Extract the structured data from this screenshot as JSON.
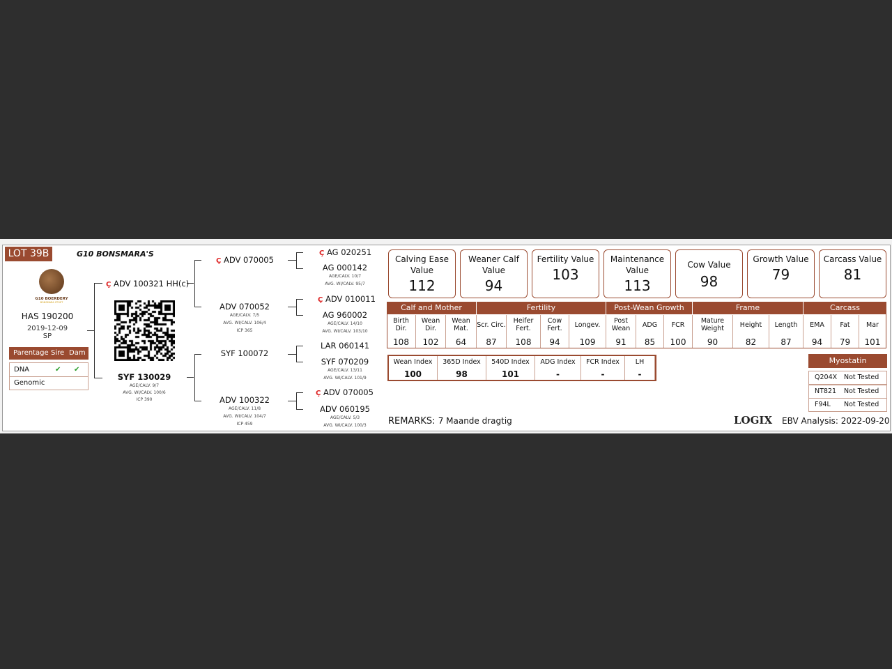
{
  "lot": "LOT 39B",
  "breeder": "G10 BONSMARA'S",
  "logo": {
    "text": "G10 BOERDERY",
    "sub": "BONSMARA STOET"
  },
  "animal": {
    "id": "HAS 190200",
    "dob": "2019-12-09",
    "code": "SP"
  },
  "parentage": {
    "headers": [
      "Parentage",
      "Sire",
      "Dam"
    ],
    "rows": [
      {
        "label": "DNA",
        "sire": "✔",
        "dam": "✔"
      },
      {
        "label": "Genomic",
        "sire": "",
        "dam": ""
      }
    ]
  },
  "pedigree": {
    "sire": {
      "id": "ADV 100321 HH(c)",
      "ct": true
    },
    "dam": {
      "id": "SYF 130029",
      "l1": "AGE/CALV. 9/7",
      "l2": "AVG. WI/CALV. 100/6",
      "l3": "ICP 390"
    },
    "ss": {
      "id": "ADV 070005",
      "ct": true
    },
    "sd": {
      "id": "ADV 070052",
      "l1": "AGE/CALV. 7/5",
      "l2": "AVG. WI/CALV. 106/4",
      "l3": "ICP 365"
    },
    "ds": {
      "id": "SYF 100072"
    },
    "dd": {
      "id": "ADV 100322",
      "l1": "AGE/CALV. 11/8",
      "l2": "AVG. WI/CALV. 104/7",
      "l3": "ICP 459"
    },
    "sss": {
      "id": "AG 020251",
      "ct": true
    },
    "ssd": {
      "id": "AG 000142",
      "l1": "AGE/CALV. 10/7",
      "l2": "AVG. WI/CALV. 95/7"
    },
    "sds": {
      "id": "ADV 010011",
      "ct": true
    },
    "sdd": {
      "id": "AG 960002",
      "l1": "AGE/CALV. 14/10",
      "l2": "AVG. WI/CALV. 103/10"
    },
    "dss": {
      "id": "LAR 060141"
    },
    "dsd": {
      "id": "SYF 070209",
      "l1": "AGE/CALV. 13/11",
      "l2": "AVG. WI/CALV. 101/9"
    },
    "dds": {
      "id": "ADV 070005",
      "ct": true
    },
    "ddd": {
      "id": "ADV 060195",
      "l1": "AGE/CALV. 5/3",
      "l2": "AVG. WI/CALV. 100/3"
    }
  },
  "values": [
    {
      "label": "Calving Ease Value",
      "value": "112"
    },
    {
      "label": "Weaner Calf Value",
      "value": "94"
    },
    {
      "label": "Fertility Value",
      "value": "103"
    },
    {
      "label": "Maintenance Value",
      "value": "113"
    },
    {
      "label": "Cow Value",
      "value": "98"
    },
    {
      "label": "Growth Value",
      "value": "79"
    },
    {
      "label": "Carcass Value",
      "value": "81"
    }
  ],
  "groups": [
    "Calf and Mother",
    "Fertility",
    "Post-Wean Growth",
    "Frame",
    "Carcass"
  ],
  "traits": [
    {
      "l": "Birth Dir.",
      "v": "108"
    },
    {
      "l": "Wean Dir.",
      "v": "102"
    },
    {
      "l": "Wean Mat.",
      "v": "64"
    },
    {
      "l": "Scr. Circ.",
      "v": "87"
    },
    {
      "l": "Heifer Fert.",
      "v": "108"
    },
    {
      "l": "Cow Fert.",
      "v": "94"
    },
    {
      "l": "Longev.",
      "v": "109"
    },
    {
      "l": "Post Wean",
      "v": "91"
    },
    {
      "l": "ADG",
      "v": "85"
    },
    {
      "l": "FCR",
      "v": "100"
    },
    {
      "l": "Mature Weight",
      "v": "90"
    },
    {
      "l": "Height",
      "v": "82"
    },
    {
      "l": "Length",
      "v": "87"
    },
    {
      "l": "EMA",
      "v": "94"
    },
    {
      "l": "Fat",
      "v": "79"
    },
    {
      "l": "Mar",
      "v": "101"
    }
  ],
  "indexes": [
    {
      "l": "Wean Index",
      "v": "100"
    },
    {
      "l": "365D Index",
      "v": "98"
    },
    {
      "l": "540D Index",
      "v": "101"
    },
    {
      "l": "ADG Index",
      "v": "-"
    },
    {
      "l": "FCR Index",
      "v": "-"
    },
    {
      "l": "LH",
      "v": "-"
    }
  ],
  "myostatin": {
    "title": "Myostatin",
    "rows": [
      {
        "g": "Q204X",
        "s": "Not Tested"
      },
      {
        "g": "NT821",
        "s": "Not Tested"
      },
      {
        "g": "F94L",
        "s": "Not Tested"
      }
    ]
  },
  "remarks": {
    "label": "REMARKS:",
    "text": "7 Maande dragtig"
  },
  "logix": "LOGIX",
  "ebv_date": "EBV Analysis: 2022-09-20",
  "colors": {
    "brand": "#9a4a30",
    "check": "#2a9d2a",
    "ct": "#d22222"
  }
}
